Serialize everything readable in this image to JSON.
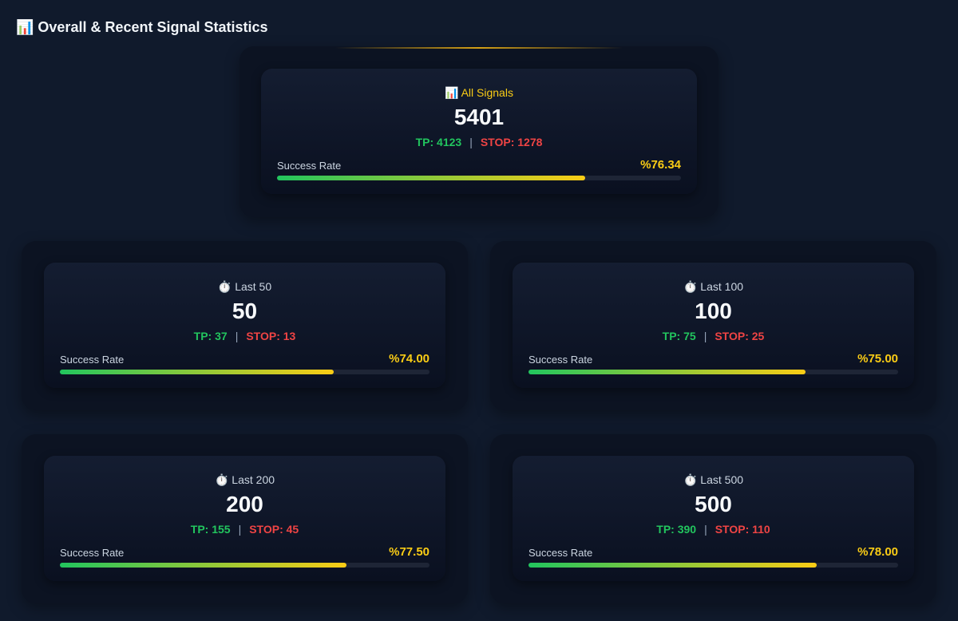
{
  "header": {
    "title": "📊 Overall & Recent Signal Statistics"
  },
  "separator": "|",
  "cards": [
    {
      "label": "📊 All Signals",
      "count": 5401,
      "tp": "TP: 4123",
      "stop": "STOP: 1278",
      "rate_title": "Success Rate",
      "success_rate": {
        "value": 76.34,
        "label": "%76.34"
      }
    },
    {
      "label": "⏱️ Last 50",
      "count": 50,
      "tp": "TP: 37",
      "stop": "STOP: 13",
      "rate_title": "Success Rate",
      "success_rate": {
        "value": 74.0,
        "label": "%74.00"
      }
    },
    {
      "label": "⏱️ Last 100",
      "count": 100,
      "tp": "TP: 75",
      "stop": "STOP: 25",
      "rate_title": "Success Rate",
      "success_rate": {
        "value": 75.0,
        "label": "%75.00"
      }
    },
    {
      "label": "⏱️ Last 200",
      "count": 200,
      "tp": "TP: 155",
      "stop": "STOP: 45",
      "rate_title": "Success Rate",
      "success_rate": {
        "value": 77.5,
        "label": "%77.50"
      }
    },
    {
      "label": "⏱️ Last 500",
      "count": 500,
      "tp": "TP: 390",
      "stop": "STOP: 110",
      "rate_title": "Success Rate",
      "success_rate": {
        "value": 78.0,
        "label": "%78.00"
      }
    }
  ]
}
